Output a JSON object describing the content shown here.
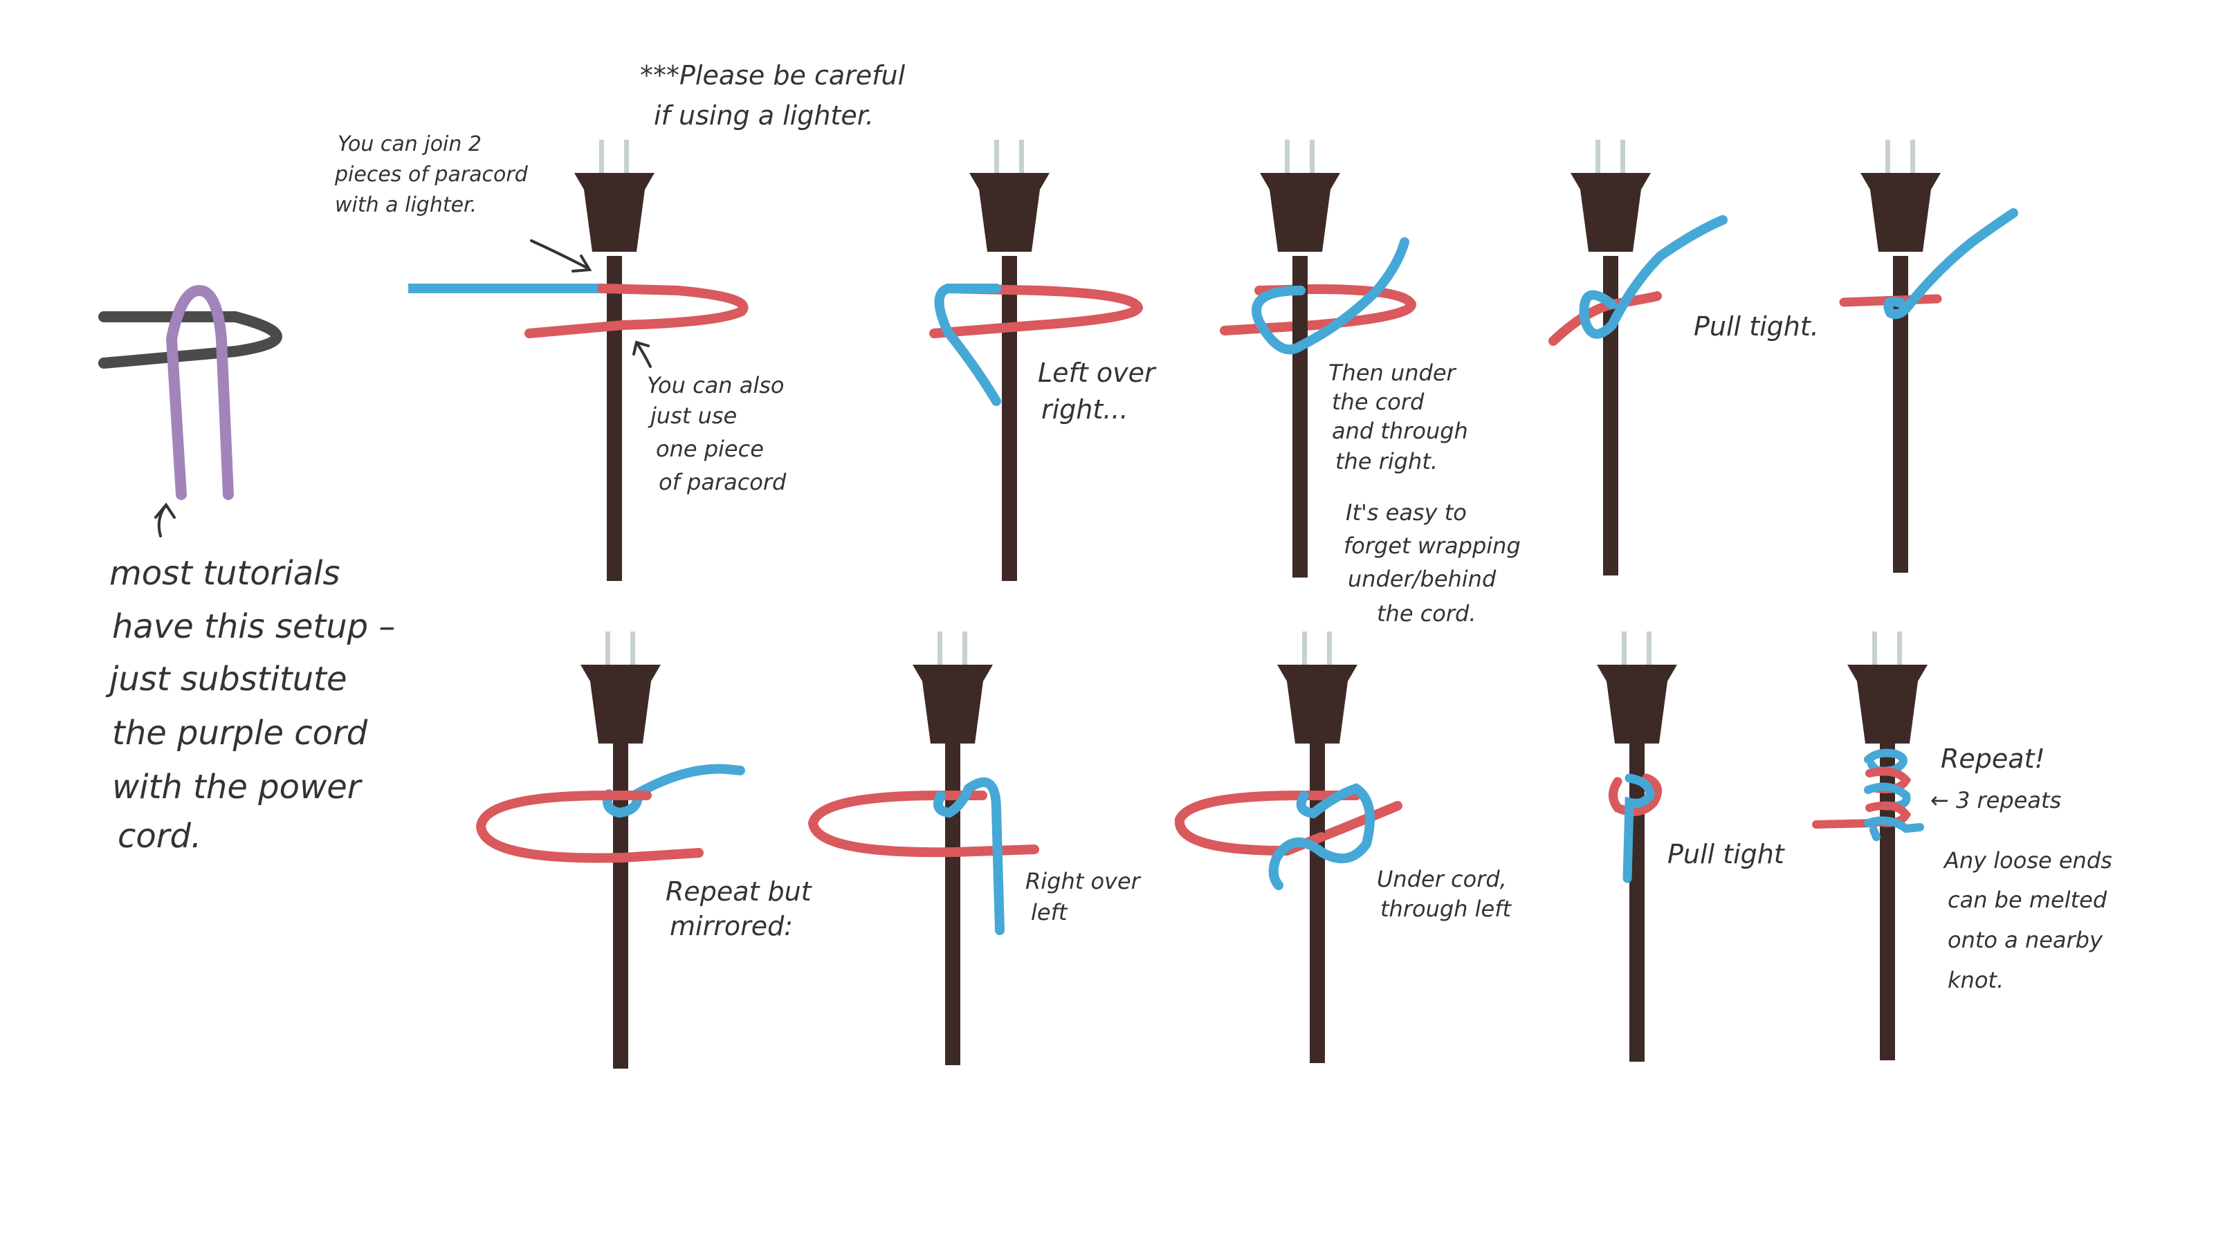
{
  "colors": {
    "red_cord": "#d9595d",
    "blue_cord": "#46a8d6",
    "purple_cord": "#a184b9",
    "gray_cord": "#4b4b4b",
    "plug": "#3d2a26",
    "prong": "#c7d0d2",
    "ink": "#333333"
  },
  "notes": {
    "lighter_warning": [
      "***Please be careful",
      "if using a lighter."
    ],
    "join_paracord": [
      "You can join 2",
      "pieces of paracord",
      "with a lighter."
    ],
    "one_piece": [
      "You can also",
      "just use",
      "one piece",
      "of paracord"
    ],
    "setup": [
      "most tutorials",
      "have this setup –",
      "just substitute",
      "the purple cord",
      "with the power",
      "cord."
    ]
  },
  "steps": {
    "left_over_right": [
      "Left over",
      "right..."
    ],
    "then_under": [
      "Then under",
      "the cord",
      "and through",
      "the right."
    ],
    "easy_forget": [
      "It's easy to",
      "forget wrapping",
      "under/behind",
      "the cord."
    ],
    "pull_tight_1": [
      "Pull tight."
    ],
    "repeat_mirrored": [
      "Repeat but",
      "mirrored:"
    ],
    "right_over_left": [
      "Right over",
      "left"
    ],
    "under_cord_left": [
      "Under cord,",
      "through left"
    ],
    "pull_tight_2": [
      "Pull tight"
    ],
    "repeat": [
      "Repeat!"
    ],
    "three_repeats": [
      "← 3 repeats"
    ],
    "loose_ends": [
      "Any loose ends",
      "can be melted",
      "onto a nearby",
      "knot."
    ]
  }
}
